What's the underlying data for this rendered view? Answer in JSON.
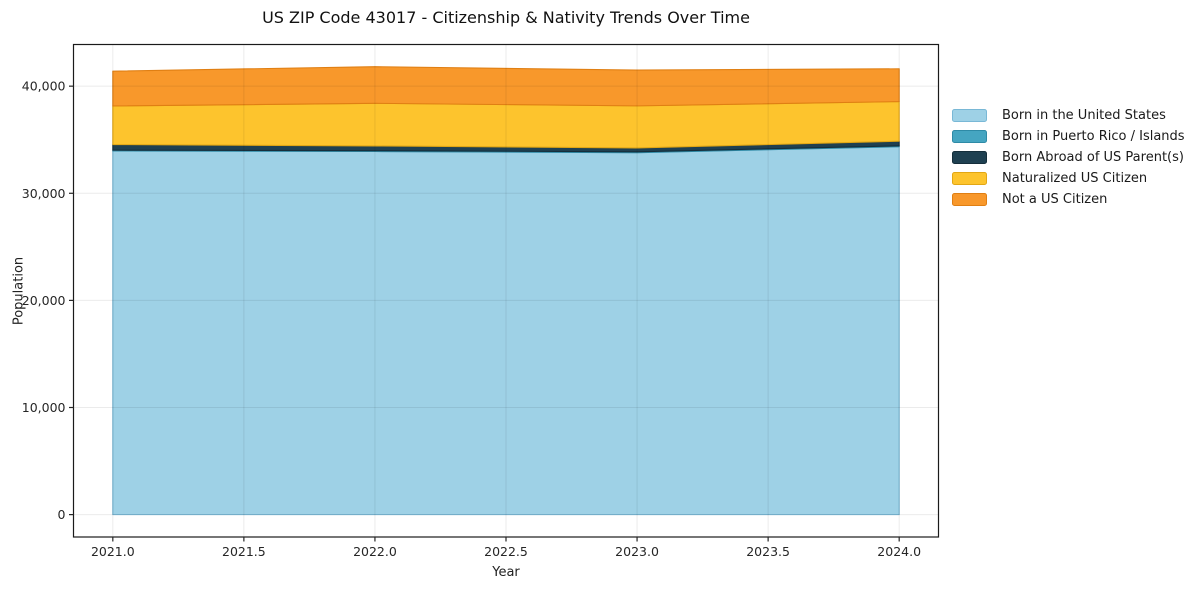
{
  "chart_data": {
    "type": "area",
    "stacked": true,
    "title": "US ZIP Code 43017 - Citizenship & Nativity Trends Over Time",
    "xlabel": "Year",
    "ylabel": "Population",
    "x": [
      2021,
      2022,
      2023,
      2024
    ],
    "series": [
      {
        "name": "Born in the United States",
        "color": "#9ed1e6",
        "edge": "#79b8d6",
        "values": [
          33950,
          33900,
          33790,
          34350
        ]
      },
      {
        "name": "Born in Puerto Rico / Islands",
        "color": "#45a5c1",
        "edge": "#2e8aa6",
        "values": [
          80,
          80,
          80,
          80
        ]
      },
      {
        "name": "Born Abroad of US Parent(s)",
        "color": "#1f4051",
        "edge": "#152e3b",
        "values": [
          520,
          440,
          360,
          430
        ]
      },
      {
        "name": "Naturalized US Citizen",
        "color": "#fdc42d",
        "edge": "#e2a714",
        "values": [
          3600,
          3980,
          3930,
          3700
        ]
      },
      {
        "name": "Not a US Citizen",
        "color": "#f8982b",
        "edge": "#e07f13",
        "values": [
          3250,
          3420,
          3340,
          3060
        ]
      }
    ],
    "xlim": [
      2020.85,
      2024.15
    ],
    "ylim": [
      -2090,
      43890
    ],
    "xticks": [
      2021.0,
      2021.5,
      2022.0,
      2022.5,
      2023.0,
      2023.5,
      2024.0
    ],
    "xtick_labels": [
      "2021.0",
      "2021.5",
      "2022.0",
      "2022.5",
      "2023.0",
      "2023.5",
      "2024.0"
    ],
    "yticks": [
      0,
      10000,
      20000,
      30000,
      40000
    ],
    "ytick_labels": [
      "0",
      "10,000",
      "20,000",
      "30,000",
      "40,000"
    ],
    "grid": true,
    "legend_position": "right-outside",
    "colors": {
      "spine": "#1a1a1a",
      "tick": "#262626",
      "grid": "rgba(0,0,0,0.08)",
      "background": "#ffffff"
    }
  }
}
